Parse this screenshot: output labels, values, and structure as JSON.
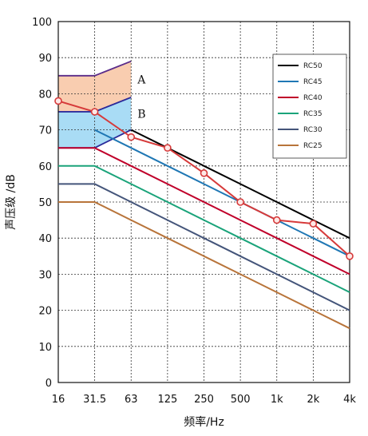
{
  "chart_data": {
    "type": "line",
    "title": "",
    "xlabel": "频率/Hz",
    "ylabel": "声压级 /dB",
    "categories": [
      "16",
      "31.5",
      "63",
      "125",
      "250",
      "500",
      "1k",
      "2k",
      "4k"
    ],
    "ylim": [
      0,
      100
    ],
    "yticks": [
      0,
      10,
      20,
      30,
      40,
      50,
      60,
      70,
      80,
      90,
      100
    ],
    "grid": "dashed horizontal and vertical",
    "legend_position": "top-right",
    "series": [
      {
        "name": "RC50",
        "color": "#000000",
        "values": [
          null,
          null,
          70,
          65,
          60,
          55,
          50,
          45,
          40
        ]
      },
      {
        "name": "RC45",
        "color": "#1f77b4",
        "values": [
          null,
          70,
          65,
          60,
          55,
          50,
          45,
          40,
          35
        ]
      },
      {
        "name": "RC40",
        "color": "#c0002a",
        "values": [
          65,
          65,
          60,
          55,
          50,
          45,
          40,
          35,
          30
        ]
      },
      {
        "name": "RC35",
        "color": "#1aa37a",
        "values": [
          60,
          60,
          55,
          50,
          45,
          40,
          35,
          30,
          25
        ]
      },
      {
        "name": "RC30",
        "color": "#44557a",
        "values": [
          55,
          55,
          50,
          45,
          40,
          35,
          30,
          25,
          20
        ]
      },
      {
        "name": "RC25",
        "color": "#b8743a",
        "values": [
          50,
          50,
          45,
          40,
          35,
          30,
          25,
          20,
          15
        ]
      }
    ],
    "measured": {
      "color": "#d63a3a",
      "values": [
        78,
        75,
        68,
        65,
        58,
        50,
        45,
        44,
        35
      ]
    },
    "zones": [
      {
        "label": "A",
        "color": "#f9cdb0",
        "border": "#5a2b8a",
        "lower": [
          [
            0,
            75
          ],
          [
            1,
            75
          ],
          [
            2,
            79
          ]
        ],
        "upper": [
          [
            0,
            85
          ],
          [
            1,
            85
          ],
          [
            2,
            89
          ]
        ]
      },
      {
        "label": "B",
        "color": "#a9dcf5",
        "border": "#2a2a9a",
        "lower": [
          [
            0,
            65
          ],
          [
            1,
            65
          ],
          [
            2,
            70
          ]
        ],
        "upper": [
          [
            0,
            75
          ],
          [
            1,
            75
          ],
          [
            2,
            79
          ]
        ]
      }
    ]
  }
}
